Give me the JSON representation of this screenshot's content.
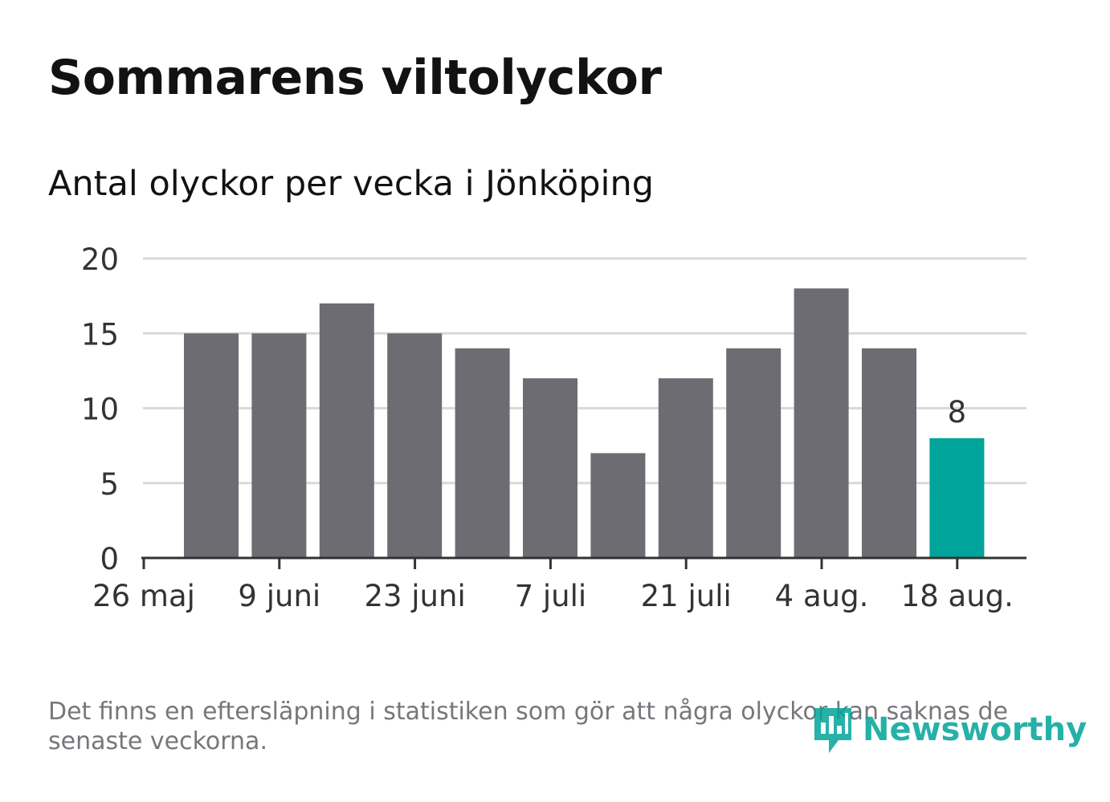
{
  "chart_data": {
    "type": "bar",
    "title": "Sommarens viltolyckor",
    "subtitle": "Antal olyckor per vecka i Jönköping",
    "ylim": [
      0,
      20
    ],
    "yticks": [
      0,
      5,
      10,
      15,
      20
    ],
    "grid": true,
    "x_tick_labels": [
      "26 maj",
      "9 juni",
      "23 juni",
      "7 juli",
      "21 juli",
      "4 aug.",
      "18 aug."
    ],
    "values": [
      15,
      15,
      17,
      15,
      14,
      12,
      7,
      12,
      14,
      18,
      14,
      8
    ],
    "highlight_index": 11,
    "highlight_label": "8",
    "colors": {
      "bar": "#6d6c72",
      "highlight": "#00a49a",
      "grid": "#d9d9d9",
      "axis": "#333333"
    }
  },
  "footnote": "Det finns en eftersläpning i statistiken som gör att några olyckor kan saknas de senaste veckorna.",
  "logo": {
    "text": "Newsworthy",
    "icon": "newsworthy-logo-icon",
    "color": "#00a49a"
  }
}
